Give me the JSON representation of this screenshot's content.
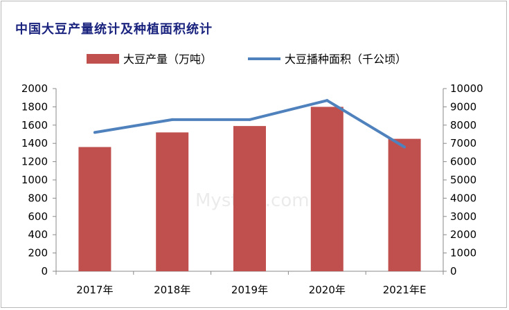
{
  "title": "中国大豆产量统计及种植面积统计",
  "legend": {
    "bar_label": "大豆产量（万吨）",
    "line_label": "大豆播种面积（千公顷）"
  },
  "colors": {
    "bar": "#c0504d",
    "line": "#4f81bd",
    "title": "#1a237e"
  },
  "chart_data": {
    "type": "bar+line",
    "categories": [
      "2017年",
      "2018年",
      "2019年",
      "2020年",
      "2021年E"
    ],
    "series": [
      {
        "name": "大豆产量（万吨）",
        "type": "bar",
        "axis": "left",
        "values": [
          1360,
          1520,
          1590,
          1800,
          1450
        ]
      },
      {
        "name": "大豆播种面积（千公顷）",
        "type": "line",
        "axis": "right",
        "values": [
          7600,
          8300,
          8300,
          9350,
          6800
        ]
      }
    ],
    "y_left": {
      "range": [
        0,
        2000
      ],
      "ticks": [
        "0",
        "200",
        "400",
        "600",
        "800",
        "1000",
        "1200",
        "1400",
        "1600",
        "1800",
        "2000"
      ]
    },
    "y_right": {
      "range": [
        0,
        10000
      ],
      "ticks": [
        "0",
        "1000",
        "2000",
        "3000",
        "4000",
        "5000",
        "6000",
        "7000",
        "8000",
        "9000",
        "10000"
      ]
    },
    "grid": false,
    "legend_position": "top"
  },
  "watermark": "Mysteel.com"
}
